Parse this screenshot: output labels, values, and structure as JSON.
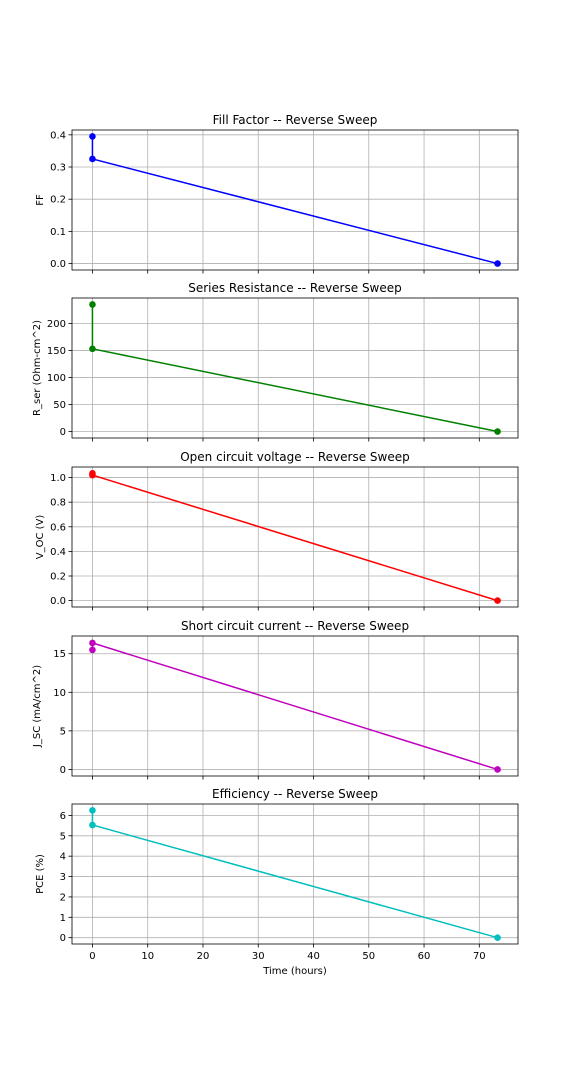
{
  "chart_data": [
    {
      "type": "line",
      "title": "Fill Factor -- Reverse Sweep",
      "ylabel": "FF",
      "xlabel": "",
      "color": "#0000ff",
      "x": [
        0,
        0,
        73.3
      ],
      "y": [
        0.395,
        0.325,
        0.0
      ],
      "xlim": [
        -3.7,
        77.0
      ],
      "ylim": [
        -0.02,
        0.415
      ],
      "yticks": [
        0.0,
        0.1,
        0.2,
        0.3,
        0.4
      ],
      "ytick_labels": [
        "0.0",
        "0.1",
        "0.2",
        "0.3",
        "0.4"
      ],
      "xticks": [
        0,
        10,
        20,
        30,
        40,
        50,
        60,
        70
      ],
      "xtick_labels": [],
      "grid": true
    },
    {
      "type": "line",
      "title": "Series Resistance -- Reverse Sweep",
      "ylabel": "R_ser (Ohm-cm^2)",
      "xlabel": "",
      "color": "#008000",
      "x": [
        0,
        0,
        73.3
      ],
      "y": [
        235,
        153,
        0
      ],
      "xlim": [
        -3.7,
        77.0
      ],
      "ylim": [
        -12,
        247
      ],
      "yticks": [
        0,
        50,
        100,
        150,
        200
      ],
      "ytick_labels": [
        "0",
        "50",
        "100",
        "150",
        "200"
      ],
      "xticks": [
        0,
        10,
        20,
        30,
        40,
        50,
        60,
        70
      ],
      "xtick_labels": [],
      "grid": true
    },
    {
      "type": "line",
      "title": "Open circuit voltage -- Reverse Sweep",
      "ylabel": "V_OC (V)",
      "xlabel": "",
      "color": "#ff0000",
      "x": [
        0,
        0,
        73.3
      ],
      "y": [
        1.035,
        1.02,
        0.0
      ],
      "xlim": [
        -3.7,
        77.0
      ],
      "ylim": [
        -0.052,
        1.086
      ],
      "yticks": [
        0.0,
        0.2,
        0.4,
        0.6,
        0.8,
        1.0
      ],
      "ytick_labels": [
        "0.0",
        "0.2",
        "0.4",
        "0.6",
        "0.8",
        "1.0"
      ],
      "xticks": [
        0,
        10,
        20,
        30,
        40,
        50,
        60,
        70
      ],
      "xtick_labels": [],
      "grid": true
    },
    {
      "type": "line",
      "title": "Short circuit current -- Reverse Sweep",
      "ylabel": "J_SC (mA/cm^2)",
      "xlabel": "",
      "color": "#bf00bf",
      "x": [
        0,
        0,
        73.3
      ],
      "y": [
        15.5,
        16.4,
        0.0
      ],
      "xlim": [
        -3.7,
        77.0
      ],
      "ylim": [
        -0.85,
        17.3
      ],
      "yticks": [
        0,
        5,
        10,
        15
      ],
      "ytick_labels": [
        "0",
        "5",
        "10",
        "15"
      ],
      "xticks": [
        0,
        10,
        20,
        30,
        40,
        50,
        60,
        70
      ],
      "xtick_labels": [],
      "grid": true
    },
    {
      "type": "line",
      "title": "Efficiency -- Reverse Sweep",
      "ylabel": "PCE (%)",
      "xlabel": "Time (hours)",
      "color": "#00bfbf",
      "x": [
        0,
        0,
        73.3
      ],
      "y": [
        6.25,
        5.53,
        0.0
      ],
      "xlim": [
        -3.7,
        77.0
      ],
      "ylim": [
        -0.31,
        6.56
      ],
      "yticks": [
        0,
        1,
        2,
        3,
        4,
        5,
        6
      ],
      "ytick_labels": [
        "0",
        "1",
        "2",
        "3",
        "4",
        "5",
        "6"
      ],
      "xticks": [
        0,
        10,
        20,
        30,
        40,
        50,
        60,
        70
      ],
      "xtick_labels": [
        "0",
        "10",
        "20",
        "30",
        "40",
        "50",
        "60",
        "70"
      ],
      "grid": true
    }
  ]
}
